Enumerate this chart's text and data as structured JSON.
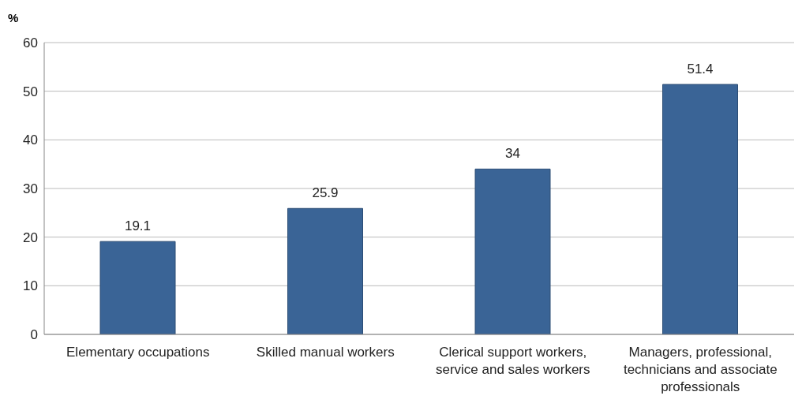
{
  "chart_data": {
    "type": "bar",
    "ylabel": "%",
    "categories": [
      "Elementary occupations",
      "Skilled manual workers",
      "Clerical support workers, service and sales workers",
      "Managers, professional, technicians and associate professionals"
    ],
    "values": [
      19.1,
      25.9,
      34,
      51.4
    ],
    "color": "#3a6496",
    "ylim": [
      0,
      60
    ],
    "yticks": [
      0,
      10,
      20,
      30,
      40,
      50,
      60
    ],
    "grid": "y",
    "data_labels": true
  }
}
